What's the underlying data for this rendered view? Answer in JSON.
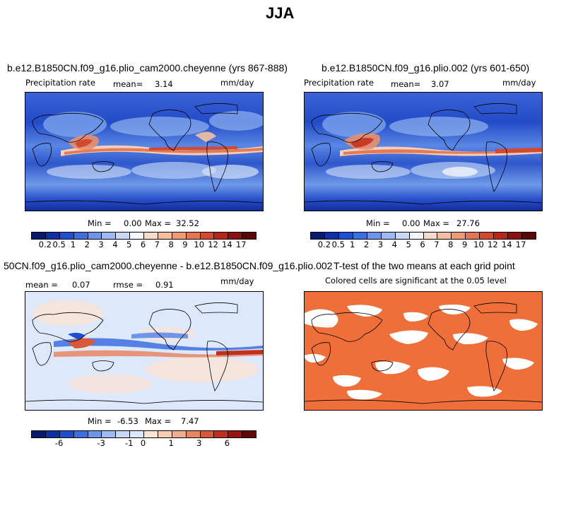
{
  "title": "JJA",
  "panels": [
    {
      "title": "b.e12.B1850CN.f09_g16.plio_cam2000.cheyenne (yrs 867-888)",
      "var_label": "Precipitation rate",
      "mean_label": "mean=",
      "mean_value": "3.14",
      "units": "mm/day",
      "min_label": "Min =",
      "min_value": "0.00",
      "max_label": "Max =",
      "max_value": "32.52",
      "colorbar_ticks": [
        "0.2",
        "0.5",
        "1",
        "2",
        "3",
        "4",
        "5",
        "6",
        "7",
        "8",
        "9",
        "10",
        "12",
        "14",
        "17"
      ]
    },
    {
      "title": "b.e12.B1850CN.f09_g16.plio.002 (yrs 601-650)",
      "var_label": "Precipitation rate",
      "mean_label": "mean=",
      "mean_value": "3.07",
      "units": "mm/day",
      "min_label": "Min =",
      "min_value": "0.00",
      "max_label": "Max =",
      "max_value": "27.76",
      "colorbar_ticks": [
        "0.2",
        "0.5",
        "1",
        "2",
        "3",
        "4",
        "5",
        "6",
        "7",
        "8",
        "9",
        "10",
        "12",
        "14",
        "17"
      ]
    },
    {
      "title": "50CN.f09_g16.plio_cam2000.cheyenne - b.e12.B1850CN.f09_g16.plio.002",
      "mean_label": "mean =",
      "mean_value": "0.07",
      "rmse_label": "rmse =",
      "rmse_value": "0.91",
      "units": "mm/day",
      "min_label": "Min =",
      "min_value": "-6.53",
      "max_label": "Max =",
      "max_value": "7.47",
      "colorbar_ticks": [
        "-6",
        "-3",
        "-1",
        "0",
        "1",
        "3",
        "6"
      ]
    },
    {
      "title": "T-test of the two means at each grid point",
      "subtitle": "Colored cells are significant at the 0.05 level"
    }
  ],
  "colors": {
    "precip_scale": [
      "#08196e",
      "#0d2fa6",
      "#1f4fd0",
      "#3d6fe2",
      "#6d96ea",
      "#9dbbf2",
      "#c7d9f7",
      "#f3f5fb",
      "#f7dccb",
      "#f3bfa0",
      "#ee9b76",
      "#e47552",
      "#d54a2f",
      "#b82619",
      "#8c1010",
      "#5c0606"
    ],
    "diff_scale": [
      "#08196e",
      "#0d2fa6",
      "#1f4fd0",
      "#3d6fe2",
      "#6d96ea",
      "#9dbbf2",
      "#c7d9f7",
      "#dde8fa",
      "#fbe4d6",
      "#f7cdb4",
      "#f1ad8d",
      "#e88563",
      "#da583a",
      "#c1301f",
      "#981410",
      "#620606"
    ],
    "ttest": "#ef6f3a",
    "ocean_base": "#2b54cf",
    "land_line": "#000000"
  }
}
